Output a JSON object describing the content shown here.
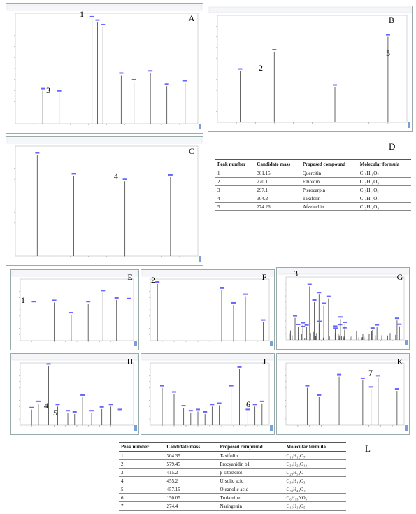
{
  "panels": [
    {
      "letter": "A",
      "peaks": [
        "1",
        "3"
      ]
    },
    {
      "letter": "B",
      "peaks": [
        "2",
        "5"
      ]
    },
    {
      "letter": "C",
      "peaks": [
        "4"
      ]
    },
    {
      "letter": "E",
      "peaks": [
        "1"
      ]
    },
    {
      "letter": "F",
      "peaks": [
        "2"
      ]
    },
    {
      "letter": "G",
      "peaks": [
        "3"
      ]
    },
    {
      "letter": "H",
      "peaks": [
        "4",
        "5"
      ]
    },
    {
      "letter": "J",
      "peaks": [
        "6"
      ]
    },
    {
      "letter": "K",
      "peaks": [
        "7"
      ]
    }
  ],
  "table_top": {
    "label": "D",
    "header": [
      "Peak number",
      "Candidate mass",
      "Proposed compound",
      "Molecular formula"
    ],
    "rows": [
      [
        "1",
        "301.15",
        "Quercitin",
        "C₁₅H₁₀O₇"
      ],
      [
        "2",
        "270.1",
        "Emoidin",
        "C₁₅H₁₀O₅"
      ],
      [
        "3",
        "297.1",
        "Pterocarpin",
        "C₁₇H₁₄O₅"
      ],
      [
        "4",
        "304.2",
        "Taxifolin",
        "C₁₅H₁₂O₇"
      ],
      [
        "5",
        "274.26",
        "Afzelechin",
        "C₁₅H₁₄O₅"
      ]
    ]
  },
  "table_bottom": {
    "label": "L",
    "header": [
      "Peak number",
      "Candidate mass",
      "Proposed compound",
      "Molecular formula"
    ],
    "rows": [
      [
        "1",
        "304.35",
        "Taxifolin",
        "C₁₅H₁₂O₇"
      ],
      [
        "2",
        "579.45",
        "Procyanidin b1",
        "C₃₀H₂₆O₁₂"
      ],
      [
        "3",
        "415.2",
        "β-sitosterol",
        "C₂₉H₅₀O"
      ],
      [
        "4",
        "455.2",
        "Ursolic acid",
        "C₃₀H₄₈O₃"
      ],
      [
        "5",
        "457.15",
        "Oleanolic acid",
        "C₃₀H₄₈O₃"
      ],
      [
        "6",
        "150.05",
        "Trolamine",
        "C₆H₁₅NO₃"
      ],
      [
        "7",
        "274.4",
        "Naringenin",
        "C₁₅H₁₂O₅"
      ]
    ]
  }
}
